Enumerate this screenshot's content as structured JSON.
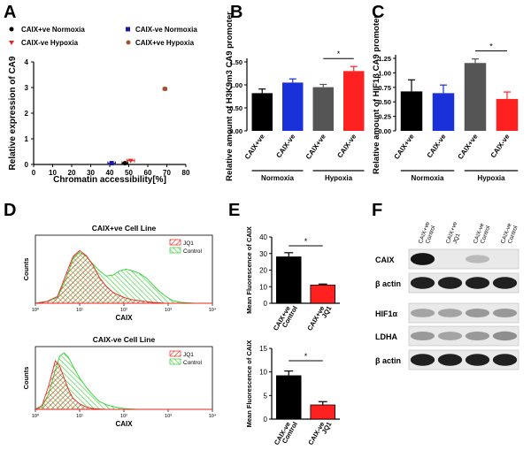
{
  "panel_labels": {
    "A": "A",
    "B": "B",
    "C": "C",
    "D": "D",
    "E": "E",
    "F": "F"
  },
  "chart_data": [
    {
      "id": "A",
      "type": "scatter",
      "xlabel": "Chromatin accessibility[%]",
      "ylabel": "Relative expression of CA9",
      "xlim": [
        0,
        80
      ],
      "ylim": [
        0,
        4
      ],
      "xticks": [
        "0",
        "10",
        "20",
        "30",
        "40",
        "50",
        "60",
        "70",
        "80"
      ],
      "yticks": [
        "0",
        "1",
        "2",
        "3",
        "4"
      ],
      "series": [
        {
          "name": "CAIX+ve Normoxia",
          "marker": "circle",
          "color": "#000000",
          "x": 48,
          "y": 0.05,
          "xerr": 1.5
        },
        {
          "name": "CAIX-ve Normoxia",
          "marker": "square",
          "color": "#1a1aa6",
          "x": 41,
          "y": 0.05,
          "xerr": 2
        },
        {
          "name": "CAIX-ve Hypoxia",
          "marker": "triangle",
          "color": "#e8251f",
          "x": 51,
          "y": 0.15,
          "xerr": 2
        },
        {
          "name": "CAIX+ve Hypoxia",
          "marker": "circle",
          "color": "#a0522d",
          "x": 69,
          "y": 2.95,
          "xerr": 1
        }
      ]
    },
    {
      "id": "B",
      "type": "bar",
      "ylabel": "Relative amount of H3K9m3 CA9 promoter",
      "ylim": [
        0,
        1.5
      ],
      "yticks": [
        "0.00",
        "0.50",
        "1.00",
        "1.50"
      ],
      "categories": [
        "CAIX+ve",
        "CAIX-ve",
        "CAIX+ve",
        "CAIX-ve"
      ],
      "groups": [
        "Normoxia",
        "Hypoxia"
      ],
      "values": [
        0.82,
        1.05,
        0.95,
        1.3
      ],
      "errors": [
        0.09,
        0.08,
        0.06,
        0.1
      ],
      "colors": [
        "#000000",
        "#1a30d8",
        "#555555",
        "#ff2020"
      ],
      "significance": "*"
    },
    {
      "id": "C",
      "type": "bar",
      "ylabel": "Relative amount of HIF1β CA9 promoter",
      "ylim": [
        0,
        1.25
      ],
      "yticks": [
        "0.00",
        "0.25",
        "0.50",
        "0.75",
        "1.00",
        "1.25"
      ],
      "categories": [
        "CAIX+ve",
        "CAIX-ve",
        "CAIX+ve",
        "CAIX-ve"
      ],
      "groups": [
        "Normoxia",
        "Hypoxia"
      ],
      "values": [
        0.68,
        0.65,
        1.17,
        0.55
      ],
      "errors": [
        0.2,
        0.14,
        0.07,
        0.12
      ],
      "colors": [
        "#000000",
        "#1a30d8",
        "#555555",
        "#ff2020"
      ],
      "significance": "*"
    },
    {
      "id": "D1",
      "type": "area",
      "title": "CAIX+ve Cell Line",
      "xlabel": "CAIX",
      "ylabel": "Counts",
      "xticks": [
        "10⁰",
        "10¹",
        "10²",
        "10³",
        "10⁴"
      ],
      "legend": [
        "JQ1",
        "Control"
      ],
      "x": [
        0.0,
        0.25,
        0.5,
        0.7,
        0.85,
        1.0,
        1.15,
        1.3,
        1.45,
        1.6,
        1.75,
        1.9,
        2.05,
        2.2,
        2.35,
        2.5,
        2.65,
        2.8,
        2.95,
        3.1,
        3.3,
        3.6,
        4.0
      ],
      "series": [
        {
          "name": "JQ1",
          "values": [
            0,
            2,
            8,
            35,
            55,
            62,
            56,
            45,
            30,
            20,
            13,
            9,
            6,
            4,
            3,
            2,
            1,
            0.5,
            0,
            0,
            0,
            0,
            0
          ]
        },
        {
          "name": "Control",
          "values": [
            0,
            2,
            7,
            30,
            52,
            60,
            55,
            46,
            38,
            32,
            33,
            38,
            40,
            38,
            35,
            30,
            22,
            14,
            8,
            3,
            1,
            0,
            0
          ]
        }
      ]
    },
    {
      "id": "D2",
      "type": "area",
      "title": "CAIX-ve Cell Line",
      "xlabel": "CAIX",
      "ylabel": "Counts",
      "xticks": [
        "10⁰",
        "10¹",
        "10²",
        "10³",
        "10⁴"
      ],
      "legend": [
        "JQ1",
        "Control"
      ],
      "x": [
        0.0,
        0.15,
        0.3,
        0.45,
        0.55,
        0.65,
        0.75,
        0.85,
        1.0,
        1.15,
        1.3,
        1.45,
        1.6,
        1.8,
        2.0,
        2.3,
        2.7,
        3.2,
        4.0
      ],
      "series": [
        {
          "name": "JQ1",
          "values": [
            0,
            5,
            30,
            62,
            55,
            40,
            25,
            14,
            7,
            3,
            1,
            0.5,
            0,
            0,
            0,
            0,
            0,
            0,
            0
          ]
        },
        {
          "name": "Control",
          "values": [
            0,
            3,
            20,
            50,
            68,
            72,
            66,
            55,
            40,
            28,
            18,
            10,
            6,
            3,
            1,
            0,
            0,
            0,
            0
          ]
        }
      ]
    },
    {
      "id": "E1",
      "type": "bar",
      "ylabel": "Mean Fluorescence of CAIX",
      "ylim": [
        0,
        40
      ],
      "yticks": [
        "0",
        "10",
        "20",
        "30",
        "40"
      ],
      "categories": [
        "CAIX+ve Control",
        "CAIX+ve JQ1"
      ],
      "values": [
        28,
        11
      ],
      "errors": [
        2.5,
        0.6
      ],
      "colors": [
        "#000000",
        "#ff2020"
      ],
      "significance": "*"
    },
    {
      "id": "E2",
      "type": "bar",
      "ylabel": "Mean Fluorescence of CAIX",
      "ylim": [
        0,
        15
      ],
      "yticks": [
        "0",
        "5",
        "10",
        "15"
      ],
      "categories": [
        "CAIX-ve Control",
        "CAIX-ve JQ1"
      ],
      "values": [
        9.2,
        3.0
      ],
      "errors": [
        1.0,
        0.7
      ],
      "colors": [
        "#000000",
        "#ff2020"
      ],
      "significance": "*"
    }
  ],
  "blot": {
    "lanes": [
      "CAIX+ve Control",
      "CAIX+ve JQ1",
      "CAIX-ve Control",
      "CAIX-ve Control"
    ],
    "rows": [
      {
        "label": "CAIX",
        "intensity": [
          0.95,
          0.0,
          0.2,
          0.0
        ]
      },
      {
        "label": "β actin",
        "intensity": [
          0.9,
          0.9,
          0.9,
          0.9
        ]
      },
      {
        "label": "HIF1α",
        "intensity": [
          0.3,
          0.3,
          0.35,
          0.35
        ]
      },
      {
        "label": "LDHA",
        "intensity": [
          0.35,
          0.3,
          0.35,
          0.4
        ]
      },
      {
        "label": "β actin",
        "intensity": [
          0.9,
          0.9,
          0.9,
          0.9
        ]
      }
    ]
  }
}
